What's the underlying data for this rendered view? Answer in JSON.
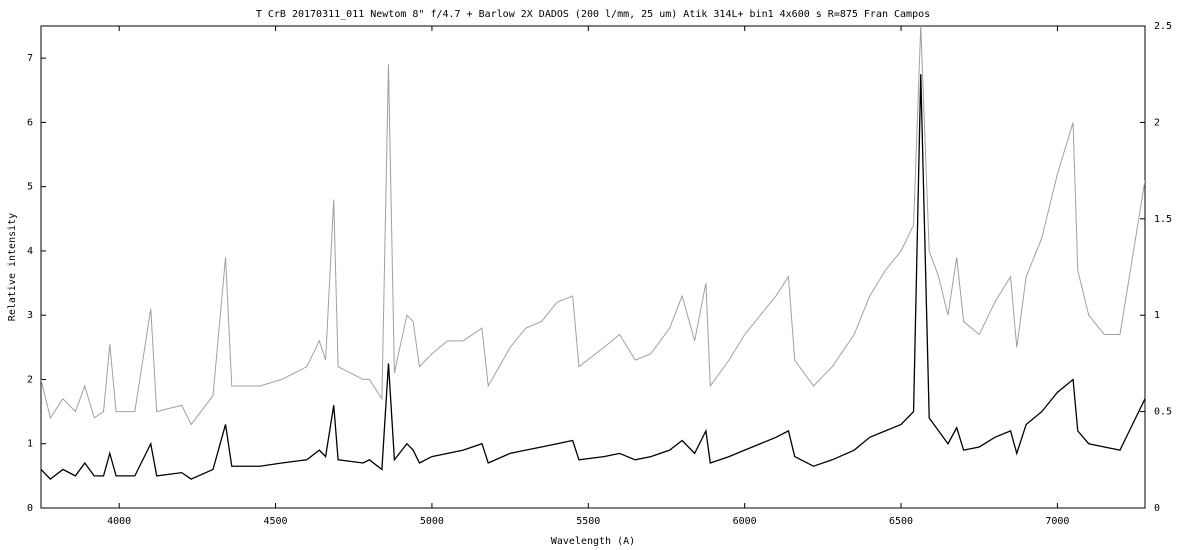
{
  "chart_data": {
    "type": "line",
    "title": "T CrB   20170311_011   Newtom 8\"  f/4.7 + Barlow 2X   DADOS (200 l/mm, 25 um)   Atik 314L+ bin1   4x600 s   R=875   Fran Campos",
    "x_label": "Wavelength (A)",
    "y_label": "Relative intensity",
    "x": [
      3750,
      3780,
      3820,
      3860,
      3890,
      3920,
      3950,
      3970,
      3990,
      4050,
      4101,
      4120,
      4200,
      4230,
      4300,
      4340,
      4360,
      4450,
      4520,
      4600,
      4640,
      4660,
      4686,
      4700,
      4780,
      4800,
      4840,
      4861,
      4880,
      4920,
      4940,
      4960,
      5000,
      5050,
      5100,
      5160,
      5180,
      5250,
      5300,
      5350,
      5400,
      5450,
      5470,
      5550,
      5600,
      5650,
      5700,
      5760,
      5800,
      5840,
      5876,
      5890,
      5950,
      6000,
      6050,
      6100,
      6140,
      6160,
      6220,
      6280,
      6350,
      6400,
      6450,
      6500,
      6540,
      6563,
      6590,
      6620,
      6650,
      6678,
      6700,
      6750,
      6800,
      6850,
      6870,
      6900,
      6950,
      7000,
      7050,
      7065,
      7100,
      7150,
      7200,
      7230,
      7280
    ],
    "series": [
      {
        "color": "#000000",
        "axis": "y",
        "values": [
          0.6,
          0.45,
          0.6,
          0.5,
          0.7,
          0.5,
          0.5,
          0.85,
          0.5,
          0.5,
          1.0,
          0.5,
          0.55,
          0.45,
          0.6,
          1.3,
          0.65,
          0.65,
          0.7,
          0.75,
          0.9,
          0.8,
          1.6,
          0.75,
          0.7,
          0.75,
          0.6,
          2.25,
          0.75,
          1.0,
          0.9,
          0.7,
          0.8,
          0.85,
          0.9,
          1.0,
          0.7,
          0.85,
          0.9,
          0.95,
          1.0,
          1.05,
          0.75,
          0.8,
          0.85,
          0.75,
          0.8,
          0.9,
          1.05,
          0.85,
          1.2,
          0.7,
          0.8,
          0.9,
          1.0,
          1.1,
          1.2,
          0.8,
          0.65,
          0.75,
          0.9,
          1.1,
          1.2,
          1.3,
          1.5,
          6.75,
          1.4,
          1.2,
          1.0,
          1.25,
          0.9,
          0.95,
          1.1,
          1.2,
          0.85,
          1.3,
          1.5,
          1.8,
          2.0,
          1.2,
          1.0,
          0.95,
          0.9,
          1.2,
          1.7
        ]
      },
      {
        "color": "#a0a0a0",
        "axis": "y2",
        "values": [
          0.667,
          0.467,
          0.567,
          0.5,
          0.633,
          0.467,
          0.5,
          0.85,
          0.5,
          0.5,
          1.033,
          0.5,
          0.533,
          0.433,
          0.583,
          1.3,
          0.633,
          0.633,
          0.667,
          0.733,
          0.867,
          0.767,
          1.6,
          0.733,
          0.667,
          0.667,
          0.567,
          2.3,
          0.7,
          1.0,
          0.967,
          0.733,
          0.8,
          0.867,
          0.867,
          0.933,
          0.633,
          0.833,
          0.933,
          0.967,
          1.067,
          1.1,
          0.733,
          0.833,
          0.9,
          0.767,
          0.8,
          0.933,
          1.1,
          0.867,
          1.167,
          0.633,
          0.767,
          0.9,
          1.0,
          1.1,
          1.2,
          0.767,
          0.633,
          0.733,
          0.9,
          1.1,
          1.233,
          1.333,
          1.467,
          2.5,
          1.333,
          1.2,
          1.0,
          1.3,
          0.967,
          0.9,
          1.067,
          1.2,
          0.833,
          1.2,
          1.4,
          1.733,
          2.0,
          1.233,
          1.0,
          0.9,
          0.9,
          1.2,
          1.7
        ]
      }
    ],
    "xlim": [
      3750,
      7280
    ],
    "xticks": [
      4000,
      4500,
      5000,
      5500,
      6000,
      6500,
      7000
    ],
    "ylim": [
      0,
      7.5
    ],
    "yticks": [
      0,
      1,
      2,
      3,
      4,
      5,
      6,
      7
    ],
    "y2lim": [
      0,
      2.5
    ],
    "y2ticks": [
      0,
      0.5,
      1,
      1.5,
      2,
      2.5
    ],
    "grid": false
  }
}
